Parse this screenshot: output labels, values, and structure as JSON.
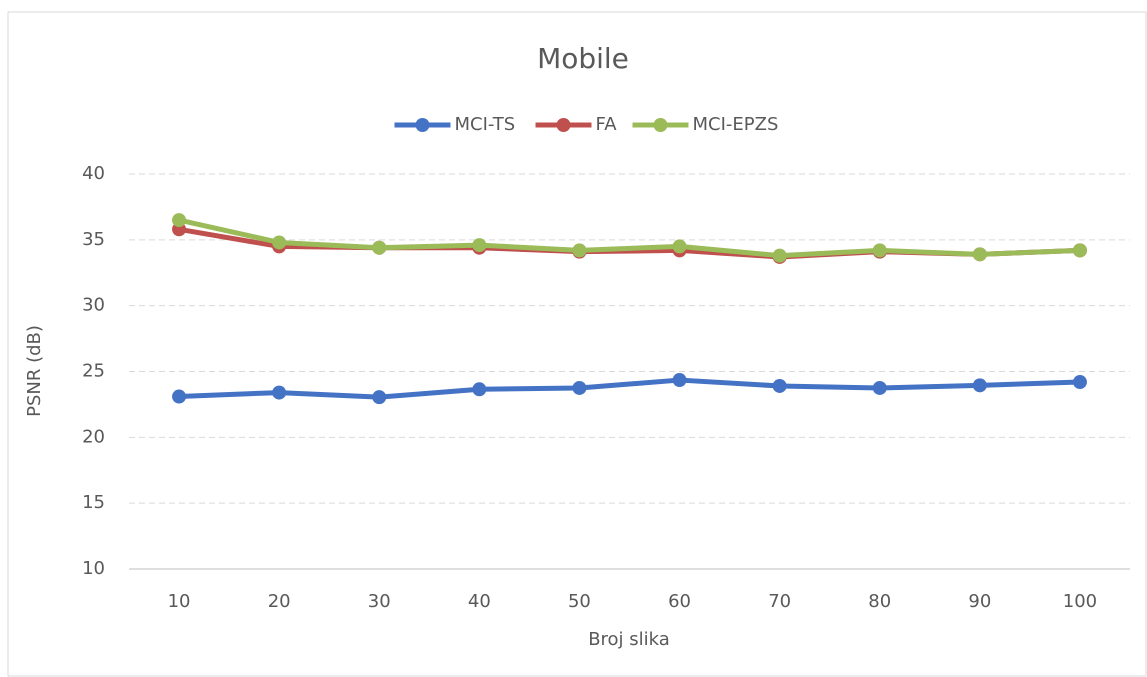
{
  "chart_data": {
    "type": "line",
    "title": "Mobile",
    "x_label": "Broj slika",
    "y_label": "PSNR (dB)",
    "categories": [
      "10",
      "20",
      "30",
      "40",
      "50",
      "60",
      "70",
      "80",
      "90",
      "100"
    ],
    "series": [
      {
        "name": "MCI-TS",
        "color": "#4472c4",
        "values": [
          23.1,
          23.4,
          23.05,
          23.65,
          23.75,
          24.35,
          23.9,
          23.75,
          23.95,
          24.2
        ]
      },
      {
        "name": "FA",
        "color": "#c0504d",
        "values": [
          35.8,
          34.5,
          34.4,
          34.4,
          34.1,
          34.2,
          33.7,
          34.1,
          33.9,
          34.2
        ]
      },
      {
        "name": "MCI-EPZS",
        "color": "#9bbb59",
        "values": [
          36.5,
          34.8,
          34.4,
          34.6,
          34.2,
          34.5,
          33.8,
          34.2,
          33.9,
          34.2
        ]
      }
    ],
    "ylim": [
      10,
      40
    ],
    "yticks": [
      10,
      15,
      20,
      25,
      30,
      35,
      40
    ],
    "grid": true,
    "legend": "top"
  }
}
